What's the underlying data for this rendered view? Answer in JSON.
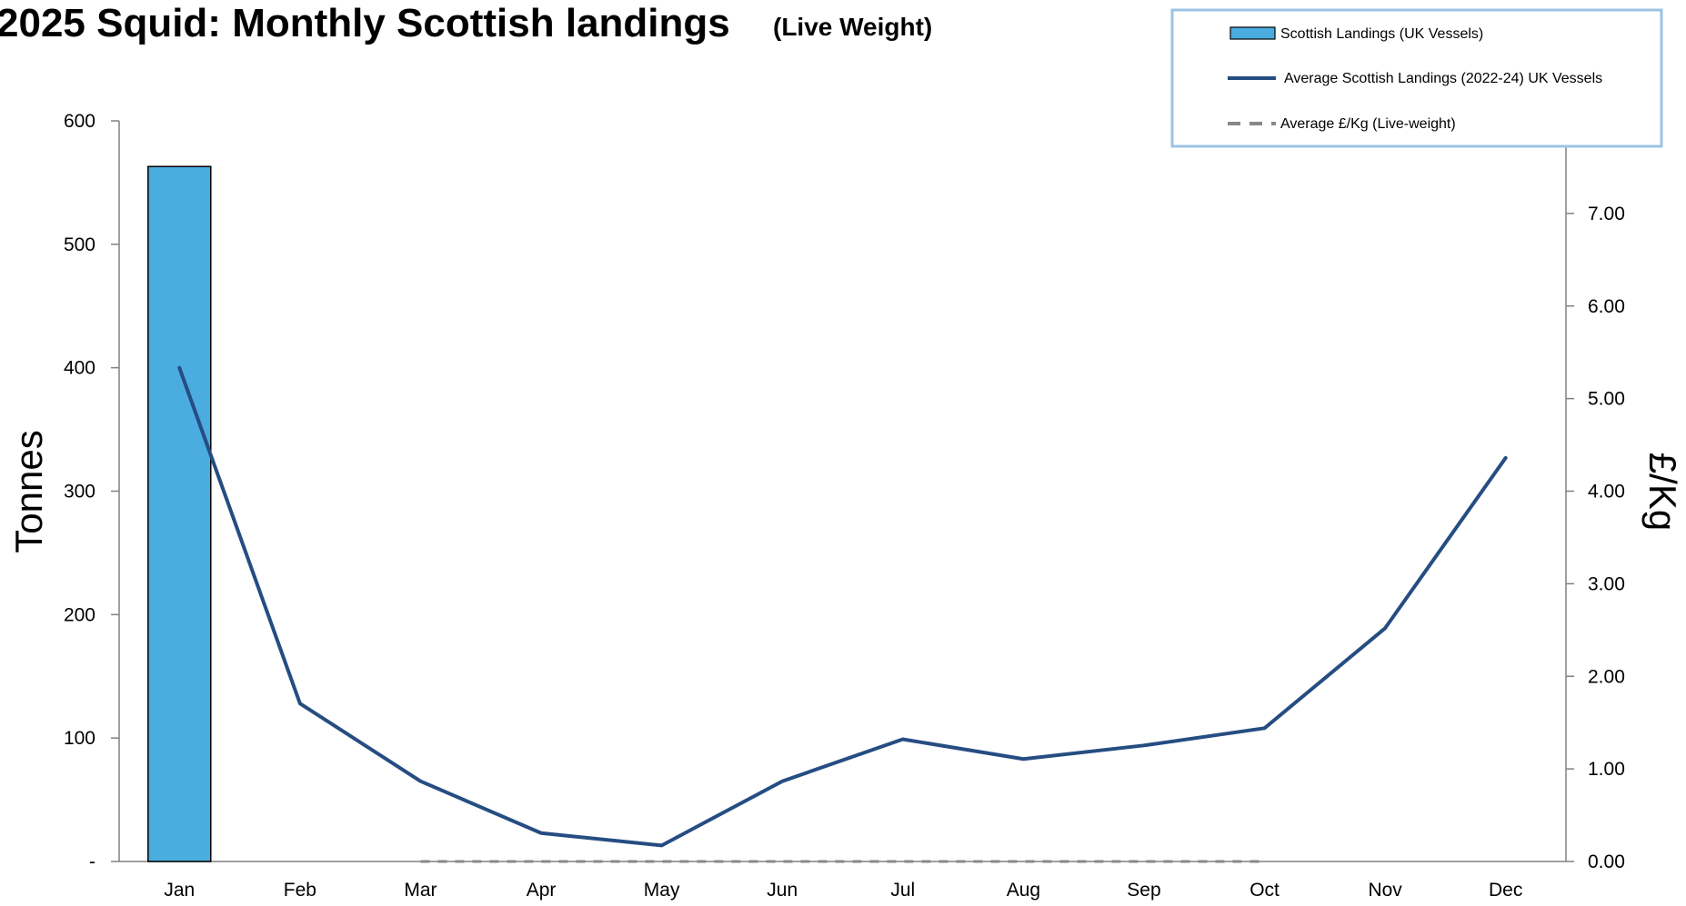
{
  "chart_data": {
    "type": "bar",
    "title": "2025 Squid: Monthly Scottish landings",
    "subtitle": "(Live Weight)",
    "categories": [
      "Jan",
      "Feb",
      "Mar",
      "Apr",
      "May",
      "Jun",
      "Jul",
      "Aug",
      "Sep",
      "Oct",
      "Nov",
      "Dec"
    ],
    "ylabel": "Tonnes",
    "y2label": "£/Kg",
    "ylim": [
      0,
      600
    ],
    "y2lim": [
      0,
      8
    ],
    "y_ticks": [
      "-",
      "100",
      "200",
      "300",
      "400",
      "500",
      "600"
    ],
    "y_tick_values": [
      0,
      100,
      200,
      300,
      400,
      500,
      600
    ],
    "y2_ticks": [
      "0.00",
      "1.00",
      "2.00",
      "3.00",
      "4.00",
      "5.00",
      "6.00",
      "7.00"
    ],
    "y2_tick_values": [
      0,
      1,
      2,
      3,
      4,
      5,
      6,
      7
    ],
    "grid": false,
    "legend_position": "top-right",
    "series": [
      {
        "name": "Scottish Landings (UK Vessels)",
        "type": "bar",
        "axis": "left",
        "color": "#4BACDF",
        "values": [
          563,
          null,
          null,
          null,
          null,
          null,
          null,
          null,
          null,
          null,
          null,
          null
        ]
      },
      {
        "name": "Average Scottish Landings  (2022-24) UK Vessels",
        "type": "line",
        "axis": "left",
        "color": "#264D82",
        "values": [
          400,
          128,
          65,
          23,
          13,
          65,
          99,
          83,
          94,
          108,
          189,
          327
        ]
      },
      {
        "name": "Average £/Kg (Live-weight)",
        "type": "line",
        "axis": "right",
        "dashed": true,
        "color": "#888888",
        "values": [
          null,
          null,
          0,
          0,
          0,
          0,
          0,
          0,
          0,
          0,
          null,
          null
        ]
      }
    ]
  }
}
